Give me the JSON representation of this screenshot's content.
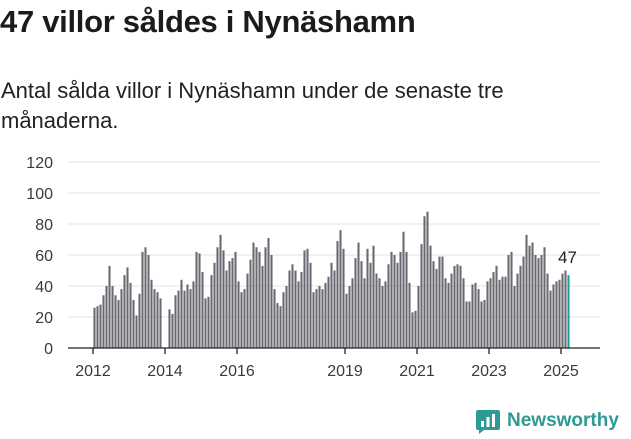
{
  "header": {
    "title": "47 villor såldes i Nynäshamn",
    "subtitle": "Antal sålda villor i Nynäshamn under de senaste tre månaderna."
  },
  "brand": {
    "name": "Newsworthy",
    "icon": "newsworthy-chart-logo-icon",
    "color": "#2e9a93"
  },
  "colors": {
    "bar": "#6b6a72",
    "highlight": "#1d9e99",
    "grid": "#e3e3e3",
    "axis": "#222222"
  },
  "chart_data": {
    "type": "bar",
    "title": "47 villor såldes i Nynäshamn",
    "subtitle": "Antal sålda villor i Nynäshamn under de senaste tre månaderna.",
    "xlabel": "",
    "ylabel": "",
    "ylim": [
      0,
      120
    ],
    "yticks": [
      0,
      20,
      40,
      60,
      80,
      100,
      120
    ],
    "grid": true,
    "legend": "none",
    "x_start": "2012-01",
    "x_end": "2025-08",
    "x_tick_labels": [
      {
        "label": "2012",
        "date": "2012-01"
      },
      {
        "label": "2014",
        "date": "2014-01"
      },
      {
        "label": "2016",
        "date": "2016-01"
      },
      {
        "label": "2019",
        "date": "2019-01"
      },
      {
        "label": "2021",
        "date": "2021-01"
      },
      {
        "label": "2023",
        "date": "2023-01"
      },
      {
        "label": "2025",
        "date": "2025-01"
      }
    ],
    "gaps": [
      {
        "from": "2013-12",
        "to": "2014-01"
      }
    ],
    "last_value_label": "47",
    "series": [
      {
        "values": [
          26,
          27,
          28,
          34,
          40,
          53,
          40,
          34,
          31,
          38,
          47,
          52,
          42,
          31,
          21,
          35,
          62,
          65,
          60,
          44,
          38,
          36,
          32,
          25,
          22,
          34,
          37,
          44,
          37,
          41,
          38,
          43,
          62,
          61,
          49,
          32,
          33,
          47,
          55,
          65,
          73,
          63,
          50,
          56,
          58,
          62,
          43,
          36,
          38,
          48,
          57,
          68,
          65,
          62,
          53,
          65,
          71,
          60,
          38,
          29,
          27,
          36,
          40,
          50,
          54,
          50,
          43,
          49,
          63,
          64,
          55,
          36,
          38,
          40,
          38,
          42,
          46,
          55,
          50,
          69,
          76,
          64,
          35,
          40,
          45,
          58,
          68,
          56,
          45,
          64,
          55,
          66,
          48,
          45,
          40,
          43,
          54,
          62,
          60,
          55,
          62,
          75,
          62,
          42,
          23,
          24,
          40,
          67,
          85,
          88,
          66,
          56,
          51,
          59,
          59,
          45,
          42,
          48,
          53,
          54,
          53,
          45,
          30,
          30,
          41,
          42,
          38,
          30,
          31,
          43,
          45,
          49,
          53,
          44,
          46,
          46,
          60,
          62,
          40,
          48,
          53,
          59,
          73,
          66,
          68,
          60,
          58,
          60,
          65,
          48,
          37,
          41,
          43,
          44,
          48,
          50,
          47
        ],
        "highlight_last": true
      }
    ]
  }
}
